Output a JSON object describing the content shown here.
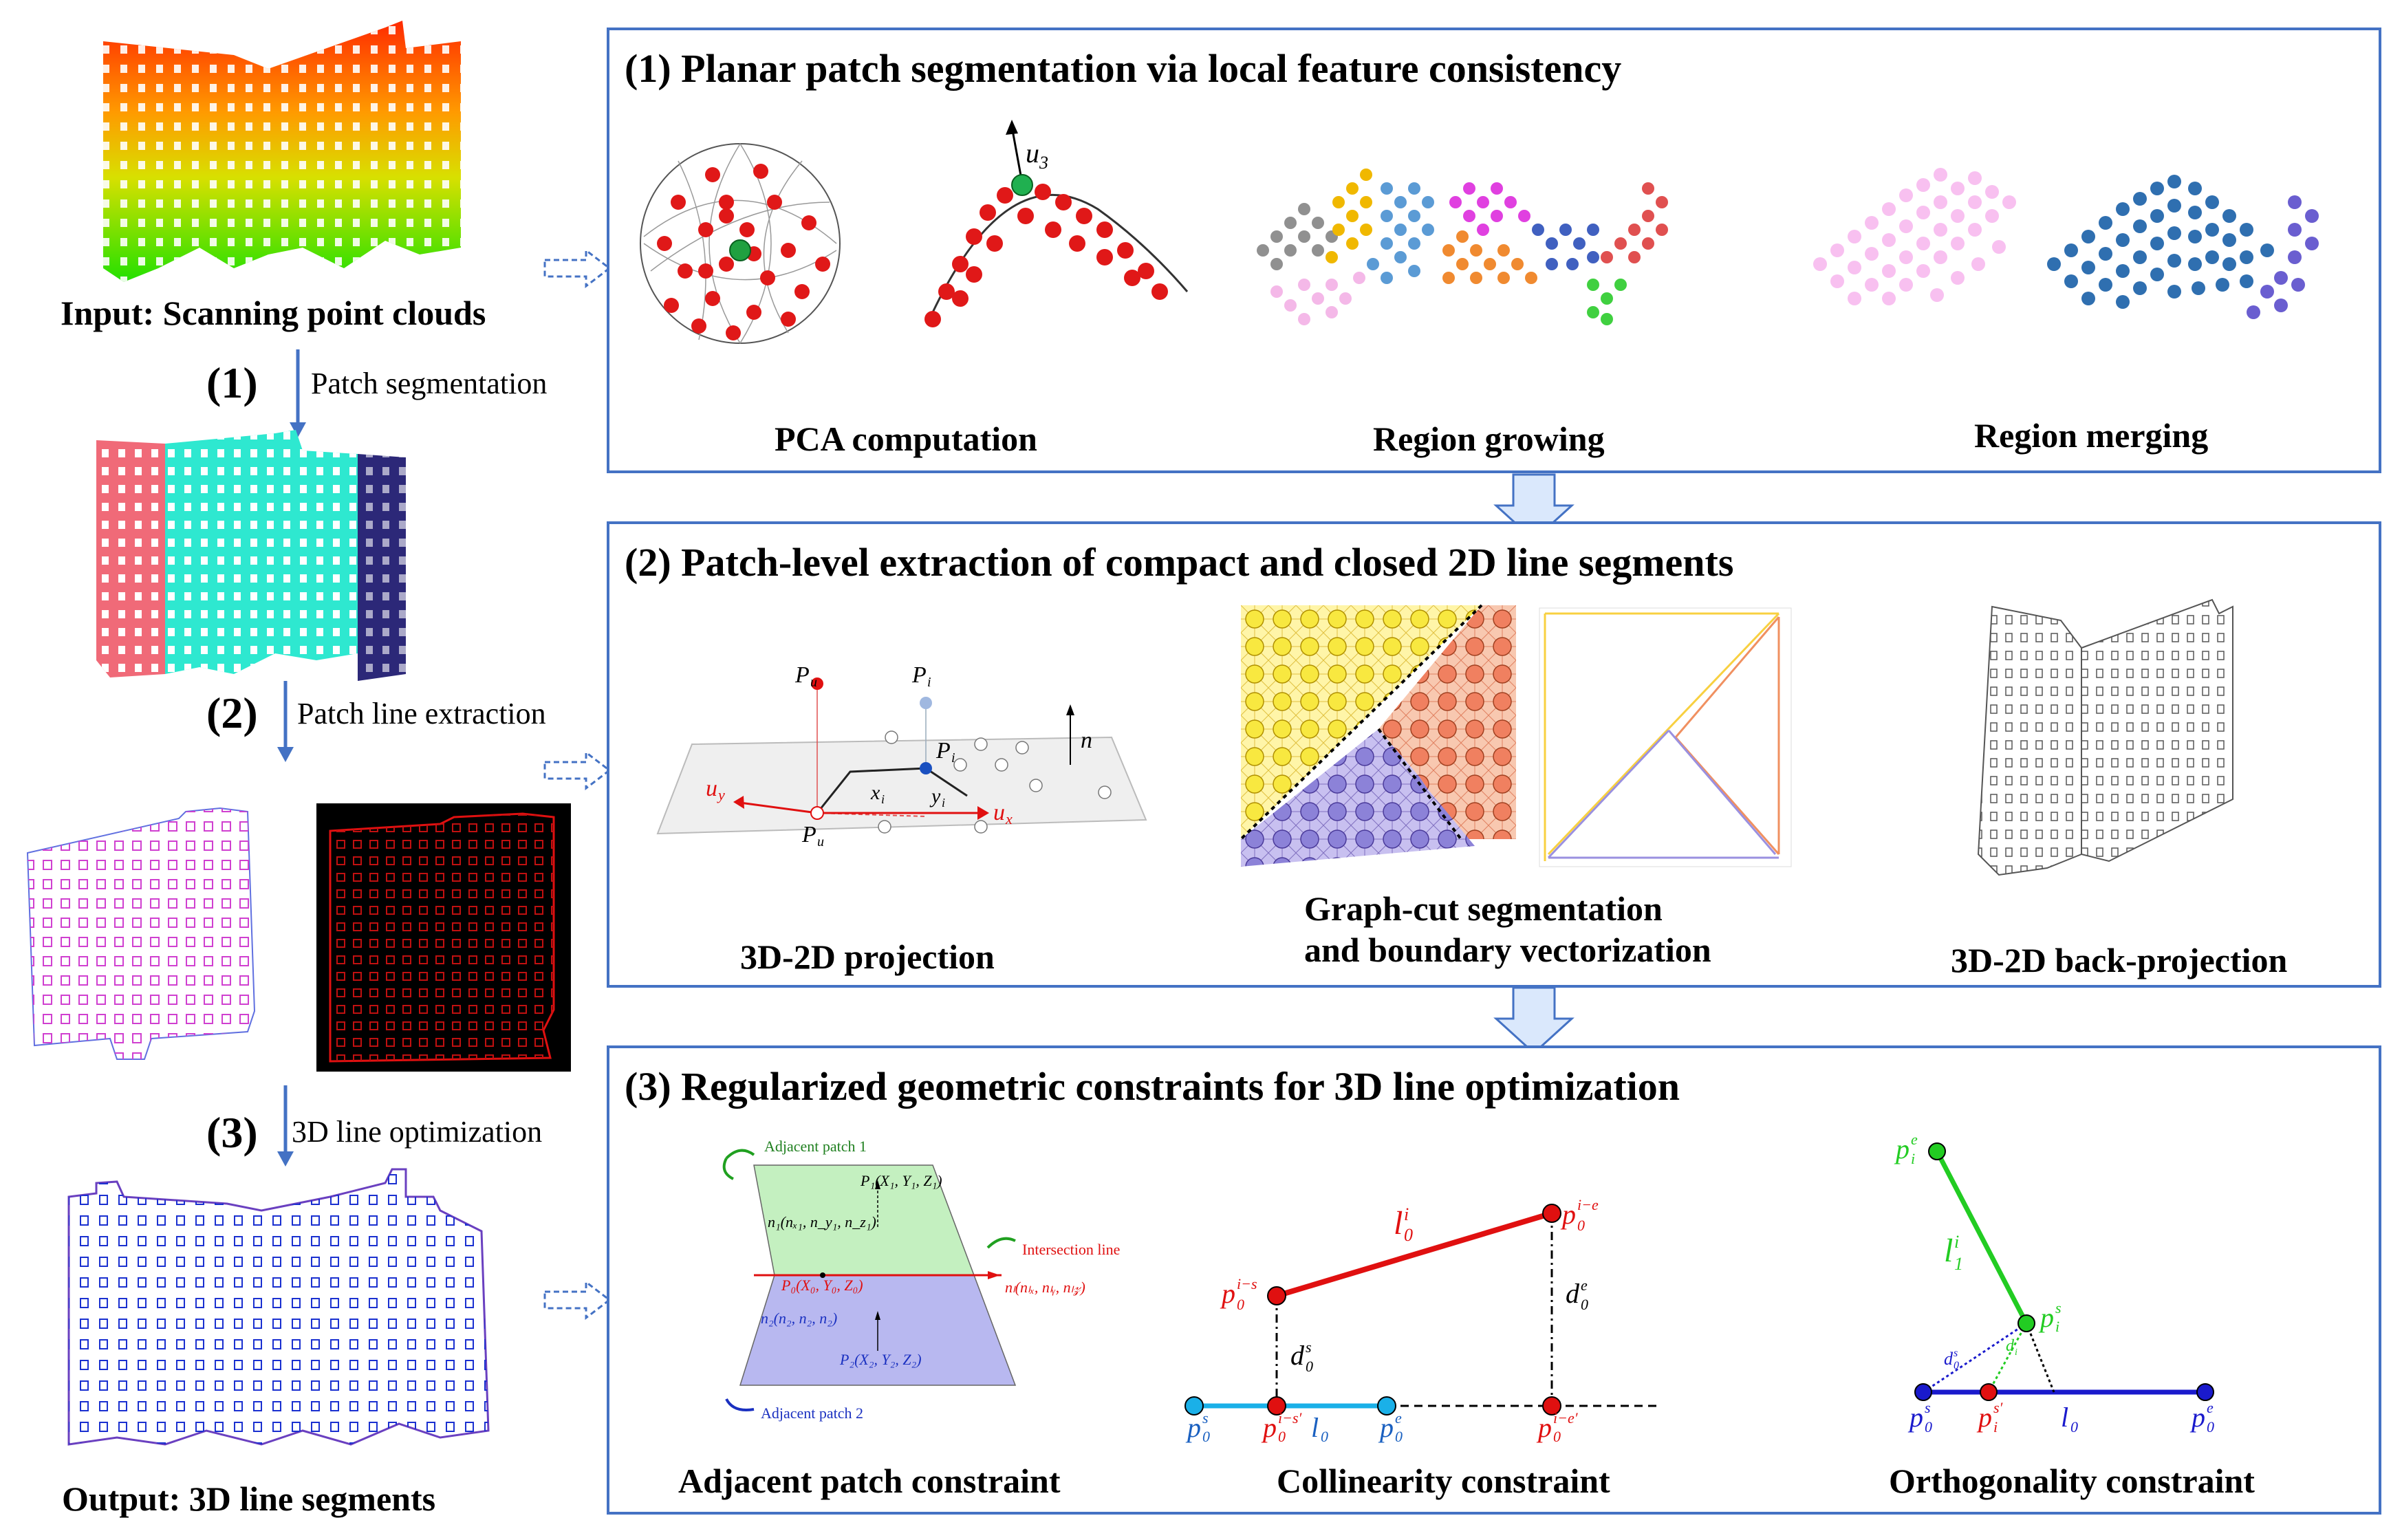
{
  "left": {
    "input_label": "Input: Scanning point clouds",
    "step1_num": "(1)",
    "step1_text": "Patch segmentation",
    "step2_num": "(2)",
    "step2_text": "Patch line extraction",
    "step3_num": "(3)",
    "step3_text": "3D line optimization",
    "output_label": "Output: 3D line segments"
  },
  "panel1": {
    "title": "(1) Planar patch segmentation via local feature consistency",
    "captions": [
      "PCA computation",
      "Region growing",
      "Region merging"
    ],
    "axis_label": "u",
    "axis_sub": "3"
  },
  "panel2": {
    "title": "(2) Patch-level extraction of compact and closed 2D line segments",
    "captions": [
      "3D-2D projection",
      "Graph-cut segmentation",
      "and boundary vectorization",
      "3D-2D back-projection"
    ]
  },
  "panel3": {
    "title": "(3) Regularized geometric constraints for 3D line optimization",
    "captions": [
      "Adjacent patch constraint",
      "Collinearity constraint",
      "Orthogonality constraint"
    ],
    "adjacent": {
      "patch1": "Adjacent patch 1",
      "patch2": "Adjacent patch 2",
      "intersection": "Intersection line",
      "p1": "P₁(X₁, Y₁, Z₁)",
      "n1": "n₁(nₓ₁, n_y₁, n_z₁)",
      "p0": "P₀(X₀, Y₀, Z₀)",
      "nl": "nₗ(nₗₓ, nₗᵧ, nₗ𝓏)",
      "n2": "n₂(n₂, n₂, n₂)",
      "p2": "P₂(X₂, Y₂, Z₂)"
    }
  },
  "colors": {
    "panel_border": "#4472c4",
    "arrow_fill": "#dae8fc",
    "red": "#e00000",
    "green": "#22cc22",
    "blue": "#1a1acc",
    "cyan": "#1ab0e8"
  }
}
